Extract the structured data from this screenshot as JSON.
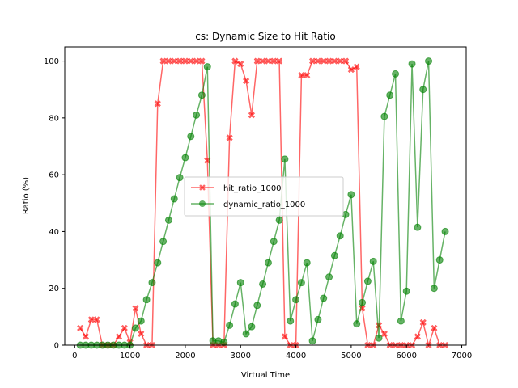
{
  "chart_data": {
    "type": "line",
    "title": "cs: Dynamic Size to Hit Ratio",
    "xlabel": "Virtual Time",
    "ylabel": "Ratio (%)",
    "xlim": [
      -180,
      7080
    ],
    "ylim": [
      0,
      105
    ],
    "xticks": [
      0,
      1000,
      2000,
      3000,
      4000,
      5000,
      6000,
      7000
    ],
    "yticks": [
      0,
      20,
      40,
      60,
      80,
      100
    ],
    "legend_position": "center",
    "grid": false,
    "series": [
      {
        "name": "hit_ratio_1000",
        "color": "#ff0000",
        "marker": "x-filled",
        "x": [
          100,
          200,
          300,
          400,
          500,
          600,
          700,
          800,
          900,
          1000,
          1100,
          1200,
          1300,
          1400,
          1500,
          1600,
          1700,
          1800,
          1900,
          2000,
          2100,
          2200,
          2300,
          2400,
          2500,
          2600,
          2700,
          2800,
          2900,
          3000,
          3100,
          3200,
          3300,
          3400,
          3500,
          3600,
          3700,
          3800,
          3900,
          4000,
          4100,
          4200,
          4300,
          4400,
          4500,
          4600,
          4700,
          4800,
          4900,
          5000,
          5100,
          5200,
          5300,
          5400,
          5500,
          5600,
          5700,
          5800,
          5900,
          6000,
          6100,
          6200,
          6300,
          6400,
          6500,
          6600,
          6700
        ],
        "y": [
          6,
          3,
          9,
          9,
          0,
          0,
          0,
          3,
          6,
          1,
          13,
          4,
          0,
          0,
          85,
          100,
          100,
          100,
          100,
          100,
          100,
          100,
          100,
          65,
          0,
          0,
          0,
          73,
          100,
          99,
          93,
          81,
          100,
          100,
          100,
          100,
          100,
          3,
          0,
          0,
          95,
          95,
          100,
          100,
          100,
          100,
          100,
          100,
          100,
          97,
          98,
          13,
          0,
          0,
          7,
          4,
          0,
          0,
          0,
          0,
          0,
          3,
          8,
          0,
          6,
          0,
          0
        ]
      },
      {
        "name": "dynamic_ratio_1000",
        "color": "#008000",
        "marker": "circle",
        "x": [
          100,
          200,
          300,
          400,
          500,
          600,
          700,
          800,
          900,
          1000,
          1100,
          1200,
          1300,
          1400,
          1500,
          1600,
          1700,
          1800,
          1900,
          2000,
          2100,
          2200,
          2300,
          2400,
          2500,
          2600,
          2700,
          2800,
          2900,
          3000,
          3100,
          3200,
          3300,
          3400,
          3500,
          3600,
          3700,
          3800,
          3900,
          4000,
          4100,
          4200,
          4300,
          4400,
          4500,
          4600,
          4700,
          4800,
          4900,
          5000,
          5100,
          5200,
          5300,
          5400,
          5500,
          5600,
          5700,
          5800,
          5900,
          6000,
          6100,
          6200,
          6300,
          6400,
          6500,
          6600,
          6700
        ],
        "y": [
          0,
          0,
          0,
          0,
          0,
          0,
          0,
          0,
          0,
          0,
          6,
          8.5,
          16,
          22,
          29,
          36.5,
          44,
          51.5,
          59,
          66,
          73.5,
          81,
          88,
          98,
          1.5,
          1.5,
          1,
          7,
          14.5,
          22,
          4,
          6.5,
          14,
          21.5,
          29,
          36.5,
          44,
          65.5,
          8.5,
          16,
          22,
          29,
          1.5,
          9,
          16.5,
          24,
          31.5,
          38.5,
          46,
          53,
          7.5,
          15,
          22.5,
          29.5,
          2.5,
          80.5,
          88,
          95.5,
          8.5,
          19,
          99,
          41.5,
          90,
          100,
          20,
          30,
          40
        ]
      }
    ]
  }
}
